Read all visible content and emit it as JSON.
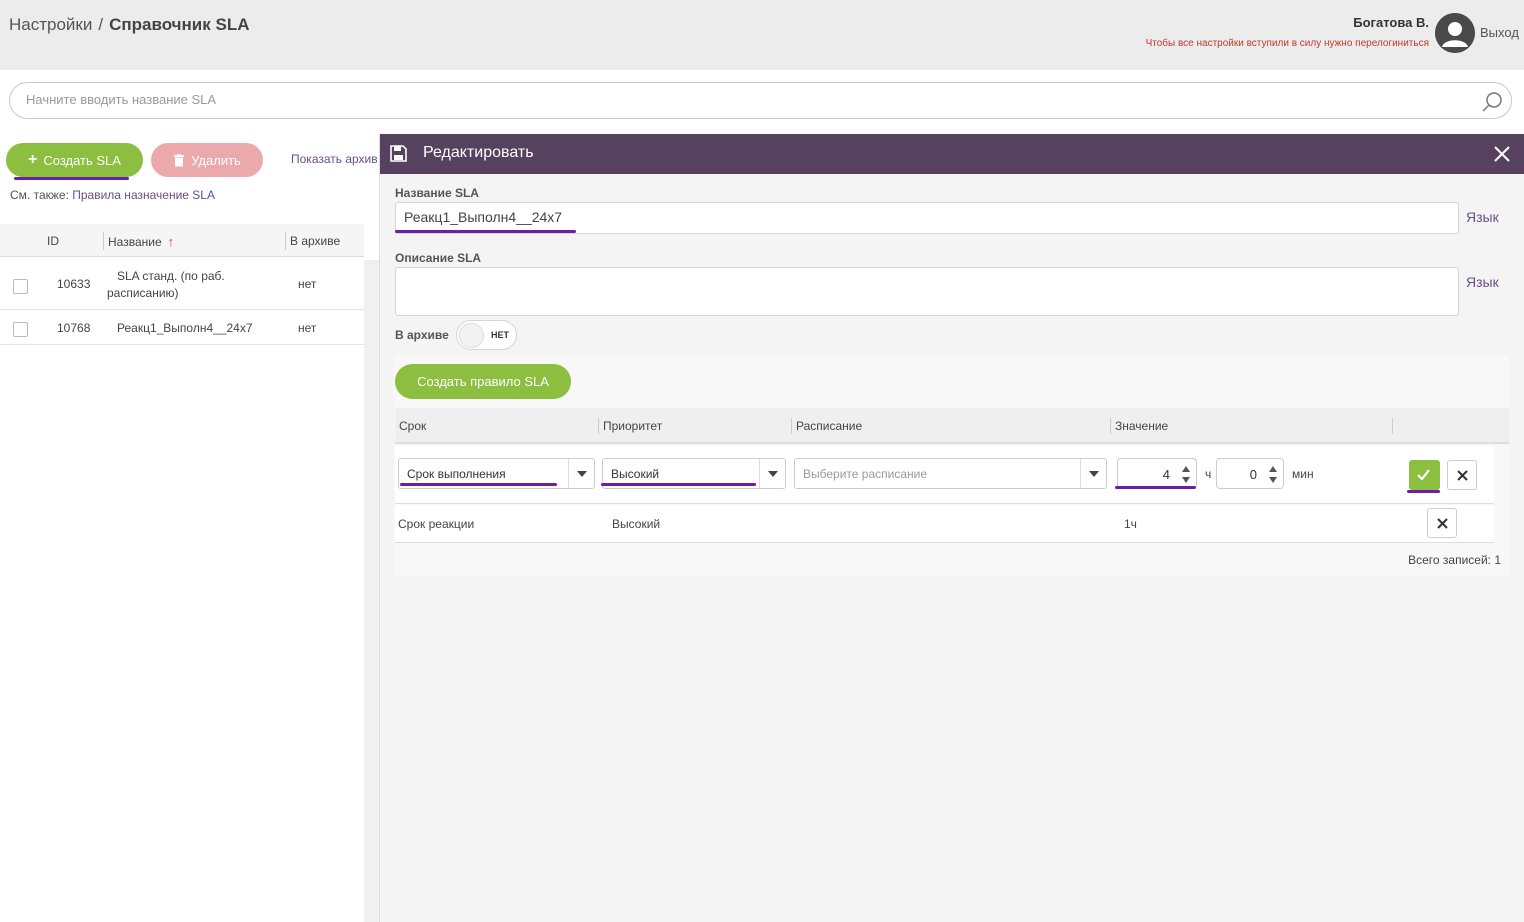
{
  "header": {
    "breadcrumb_root": "Настройки",
    "breadcrumb_sep": "/",
    "breadcrumb_current": "Справочник SLA",
    "user_name": "Богатова В.",
    "relogin_note": "Чтобы все настройки вступили в силу нужно перелогиниться",
    "logout": "Выход"
  },
  "search": {
    "placeholder": "Начните вводить название SLA"
  },
  "toolbar": {
    "create_label": "Создать SLA",
    "delete_label": "Удалить",
    "show_archive": "Показать архив"
  },
  "see_also": {
    "label": "См. также:",
    "link": "Правила назначение SLA"
  },
  "list": {
    "columns": {
      "id": "ID",
      "name": "Название",
      "archived": "В архиве"
    },
    "rows": [
      {
        "id": "10633",
        "name_line1": "SLA станд. (по раб.",
        "name_line2": "расписанию)",
        "archived": "нет"
      },
      {
        "id": "10768",
        "name": "Реакц1_Выполн4__24х7",
        "archived": "нет"
      }
    ]
  },
  "panel": {
    "title": "Редактировать",
    "name_label": "Название SLA",
    "name_value": "Реакц1_Выполн4__24х7",
    "lang_label": "Язык",
    "desc_label": "Описание SLA",
    "desc_value": "",
    "archive_label": "В архиве",
    "archive_toggle": "НЕТ",
    "create_rule": "Создать правило SLA",
    "rules_columns": {
      "term": "Срок",
      "priority": "Приоритет",
      "schedule": "Расписание",
      "value": "Значение"
    },
    "edit_row": {
      "term": "Срок выполнения",
      "priority": "Высокий",
      "schedule_placeholder": "Выберите расписание",
      "hours": "4",
      "hours_unit": "ч",
      "minutes": "0",
      "minutes_unit": "мин"
    },
    "rules": [
      {
        "term": "Срок реакции",
        "priority": "Высокий",
        "value": "1ч"
      }
    ],
    "total": "Всего записей: 1"
  },
  "colors": {
    "accent_green": "#8cbf3f",
    "panel_header": "#56415f",
    "underline": "#6a1fa7",
    "danger_light": "#eba9ab",
    "link": "#6a4d8a"
  }
}
